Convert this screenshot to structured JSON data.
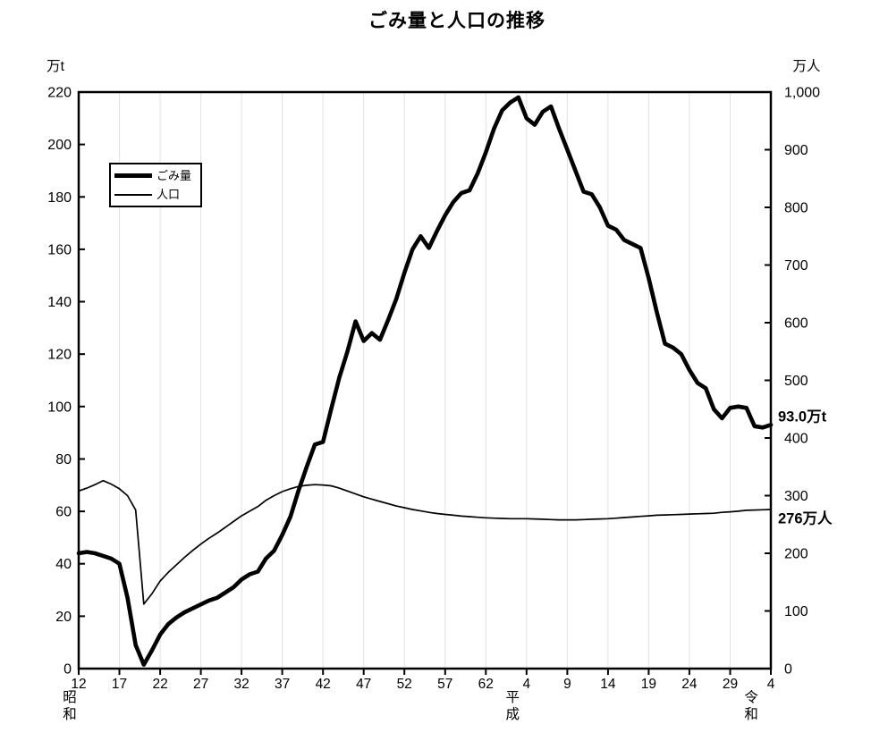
{
  "legend": {
    "items": [
      {
        "label": "ごみ量",
        "style": "thick"
      },
      {
        "label": "人口",
        "style": "thin"
      }
    ]
  },
  "chart_data": {
    "type": "line",
    "title": "ごみ量と人口の推移",
    "grid": "vertical-only",
    "legend_position": "upper-left",
    "x_axis": {
      "tick_years": [
        1937,
        1942,
        1947,
        1952,
        1957,
        1962,
        1967,
        1972,
        1977,
        1982,
        1987,
        1992,
        1997,
        2002,
        2007,
        2012,
        2017,
        2022
      ],
      "tick_labels": [
        "12",
        "17",
        "22",
        "27",
        "32",
        "37",
        "42",
        "47",
        "52",
        "57",
        "62",
        "4",
        "9",
        "14",
        "19",
        "24",
        "29",
        "4"
      ],
      "eras": [
        {
          "name": "昭和",
          "chars": [
            "昭",
            "和"
          ],
          "position_year": 1935.9
        },
        {
          "name": "平成",
          "chars": [
            "平",
            "成"
          ],
          "position_year": 1990.3
        },
        {
          "name": "令和",
          "chars": [
            "令",
            "和"
          ],
          "position_year": 2019.6
        }
      ]
    },
    "y_left": {
      "unit": "万t",
      "max": 220,
      "tick_values": [
        0,
        20,
        40,
        60,
        80,
        100,
        120,
        140,
        160,
        180,
        200,
        220
      ],
      "tick_labels": [
        "0",
        "20",
        "40",
        "60",
        "80",
        "100",
        "120",
        "140",
        "160",
        "180",
        "200",
        "220"
      ]
    },
    "y_right": {
      "unit": "万人",
      "max": 1000,
      "tick_values": [
        0,
        100,
        200,
        300,
        400,
        500,
        600,
        700,
        800,
        900,
        1000
      ],
      "tick_labels": [
        "0",
        "100",
        "200",
        "300",
        "400",
        "500",
        "600",
        "700",
        "800",
        "900",
        "1,000"
      ]
    },
    "years": [
      1937,
      1938,
      1939,
      1940,
      1941,
      1942,
      1943,
      1944,
      1945,
      1946,
      1947,
      1948,
      1949,
      1950,
      1951,
      1952,
      1953,
      1954,
      1955,
      1956,
      1957,
      1958,
      1959,
      1960,
      1961,
      1962,
      1963,
      1964,
      1965,
      1966,
      1967,
      1968,
      1969,
      1970,
      1971,
      1972,
      1973,
      1974,
      1975,
      1976,
      1977,
      1978,
      1979,
      1980,
      1981,
      1982,
      1983,
      1984,
      1985,
      1986,
      1987,
      1988,
      1989,
      1990,
      1991,
      1992,
      1993,
      1994,
      1995,
      1996,
      1997,
      1998,
      1999,
      2000,
      2001,
      2002,
      2003,
      2004,
      2005,
      2006,
      2007,
      2008,
      2009,
      2010,
      2011,
      2012,
      2013,
      2014,
      2015,
      2016,
      2017,
      2018,
      2019,
      2020,
      2021,
      2022
    ],
    "series": [
      {
        "name": "ごみ量",
        "axis": "left",
        "line": "thick",
        "values": [
          44,
          44.5,
          44,
          43,
          42,
          40,
          27,
          9,
          1.5,
          7,
          13,
          17,
          19.5,
          21.5,
          23,
          24.5,
          26,
          27,
          29,
          31,
          34,
          36,
          37,
          42,
          45,
          51,
          58,
          68,
          77,
          85.5,
          86.5,
          99,
          111,
          121,
          132.5,
          125,
          128,
          125.5,
          133,
          141,
          151,
          160,
          165,
          160.5,
          167,
          173,
          178,
          181.5,
          182.5,
          189,
          197,
          206,
          213,
          216,
          218,
          210,
          207.5,
          212.5,
          214.5,
          206,
          198,
          190,
          182,
          181,
          176,
          169,
          167.5,
          163.5,
          162,
          160.5,
          149,
          136,
          124,
          122.5,
          120,
          114,
          109,
          107,
          99,
          95.5,
          99.5,
          100,
          99.5,
          92.5,
          92,
          93
        ]
      },
      {
        "name": "人口",
        "axis": "right",
        "line": "thin",
        "values": [
          308,
          313,
          319,
          326,
          320,
          312,
          300,
          275,
          112,
          130,
          152,
          167,
          180,
          193,
          205,
          216,
          226,
          235,
          245,
          255,
          265,
          273,
          281,
          292,
          300,
          307,
          312,
          316,
          318,
          319,
          318.5,
          317,
          313,
          308,
          303,
          298,
          294,
          290,
          286,
          282,
          279,
          276,
          273.5,
          271,
          269,
          267.5,
          266,
          264.5,
          263.5,
          262.5,
          261.5,
          261,
          260.5,
          260,
          260,
          260,
          259.5,
          259,
          258.5,
          258,
          258,
          258,
          258.5,
          259,
          259.5,
          260,
          261,
          262,
          263,
          264,
          265,
          266,
          266.5,
          267,
          267.5,
          268,
          268.5,
          269,
          269.5,
          271,
          272,
          273,
          274.5,
          275,
          275.5,
          276
        ]
      }
    ],
    "annotations": [
      {
        "text": "93.0万t",
        "axis": "left",
        "anchor_value": 96.3
      },
      {
        "text": "276万人",
        "axis": "right",
        "anchor_value": 261
      }
    ]
  }
}
